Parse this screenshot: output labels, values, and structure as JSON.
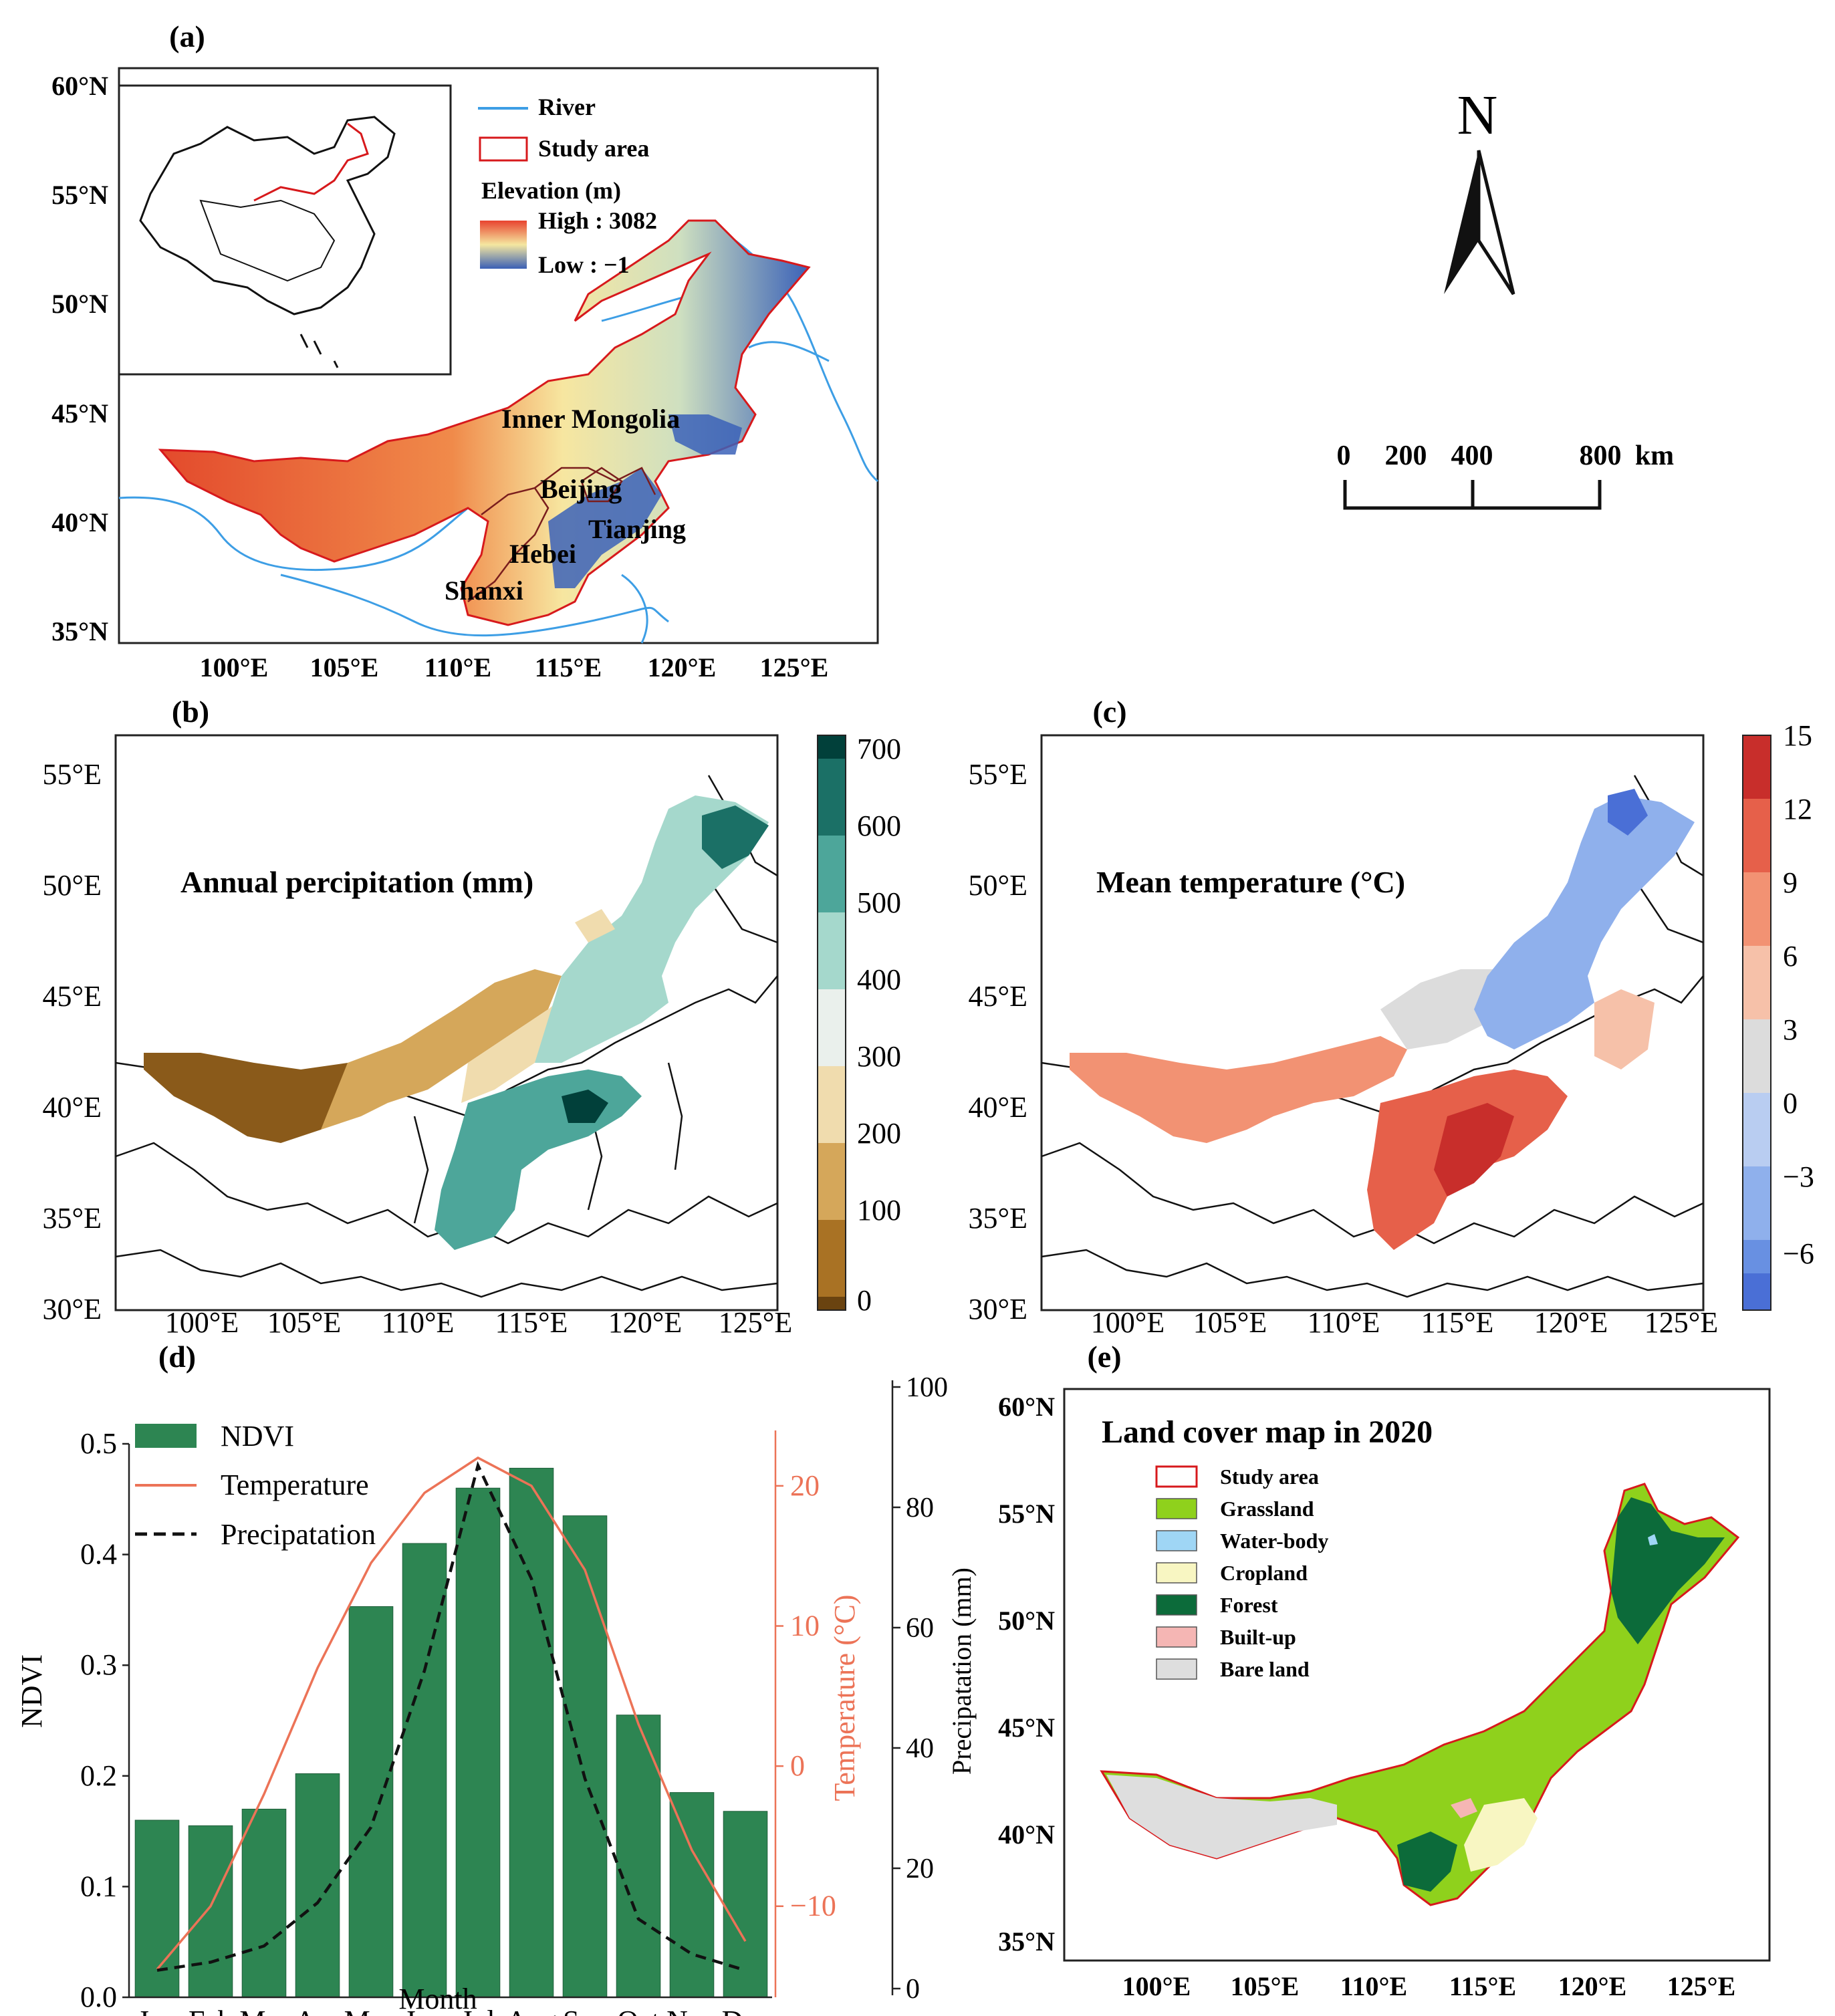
{
  "panels": {
    "a": {
      "label": "(a)",
      "lat_ticks": [
        "60°N",
        "55°N",
        "50°N",
        "45°N",
        "40°N",
        "35°N"
      ],
      "lon_ticks": [
        "100°E",
        "105°E",
        "110°E",
        "115°E",
        "120°E",
        "125°E"
      ],
      "legend": {
        "river": "River",
        "study_area": "Study area",
        "elevation_title": "Elevation (m)",
        "high": "High : 3082",
        "low": "Low : −1"
      },
      "places": [
        "Inner Mongolia",
        "Beijing",
        "Tianjing",
        "Hebei",
        "Shanxi"
      ],
      "north": "N",
      "scale": {
        "ticks": [
          "0",
          "200",
          "400",
          "800"
        ],
        "unit": "km"
      },
      "colors": {
        "high": "#e8432f",
        "mid": "#f5e7a0",
        "low": "#3a5fb5",
        "river": "#3d9ee5",
        "study_area": "#d7191c"
      }
    },
    "b": {
      "label": "(b)",
      "title": "Annual percipitation (mm)",
      "lat_ticks": [
        "55°E",
        "50°E",
        "45°E",
        "40°E",
        "35°E",
        "30°E"
      ],
      "lon_ticks": [
        "100°E",
        "105°E",
        "110°E",
        "115°E",
        "120°E",
        "125°E"
      ],
      "colorbar_ticks": [
        "700",
        "600",
        "500",
        "400",
        "300",
        "200",
        "100",
        "0"
      ],
      "colorbar_colors": [
        "#01403a",
        "#1b7066",
        "#4da69a",
        "#a5d8cc",
        "#eaf0ec",
        "#f0dcae",
        "#d5a75a",
        "#a97224",
        "#6a4310"
      ]
    },
    "c": {
      "label": "(c)",
      "title": "Mean temperature (°C)",
      "lat_ticks": [
        "55°E",
        "50°E",
        "45°E",
        "40°E",
        "35°E",
        "30°E"
      ],
      "lon_ticks": [
        "100°E",
        "105°E",
        "110°E",
        "115°E",
        "120°E",
        "125°E"
      ],
      "colorbar_ticks": [
        "15",
        "12",
        "9",
        "6",
        "3",
        "0",
        "−3",
        "−6"
      ],
      "colorbar_colors": [
        "#c82e2b",
        "#e6604a",
        "#f29273",
        "#f6c1a9",
        "#dcdcdc",
        "#b9cdf1",
        "#8fb0ec",
        "#6890e2",
        "#4a6fd6"
      ]
    },
    "d": {
      "label": "(d)",
      "legend": [
        "NDVI",
        "Temperature",
        "Precipatation"
      ],
      "colors": {
        "bar": "#2d8552",
        "temperature": "#ec7357",
        "precip": "#111111"
      }
    },
    "e": {
      "label": "(e)",
      "title": "Land cover map in 2020",
      "lat_ticks": [
        "60°N",
        "55°N",
        "50°N",
        "45°N",
        "40°N",
        "35°N"
      ],
      "lon_ticks": [
        "100°E",
        "105°E",
        "110°E",
        "115°E",
        "120°E",
        "125°E"
      ],
      "ylabel": "Precipatation (mm)",
      "legend": [
        {
          "label": "Study area",
          "color": "#ffffff",
          "border": "#d7191c"
        },
        {
          "label": "Grassland",
          "color": "#8fd11c"
        },
        {
          "label": "Water-body",
          "color": "#9fd6f5"
        },
        {
          "label": "Cropland",
          "color": "#f8f6c2"
        },
        {
          "label": "Forest",
          "color": "#0c6b3a"
        },
        {
          "label": "Built-up",
          "color": "#f5b6b4"
        },
        {
          "label": "Bare land",
          "color": "#dedede"
        }
      ]
    }
  },
  "chart_data": {
    "type": "bar",
    "categories": [
      "Jan",
      "Feb",
      "Mar",
      "Apr",
      "May",
      "Jun",
      "Jul",
      "Aug",
      "Sep",
      "Oct",
      "Nov",
      "Dec"
    ],
    "xlabel": "Month",
    "ylabel": "NDVI",
    "ylim": [
      0,
      0.5
    ],
    "y_ticks": [
      "0.0",
      "0.1",
      "0.2",
      "0.3",
      "0.4",
      "0.5"
    ],
    "series": [
      {
        "name": "NDVI",
        "axis": "left",
        "type": "bar",
        "values": [
          0.16,
          0.155,
          0.17,
          0.202,
          0.353,
          0.41,
          0.46,
          0.478,
          0.435,
          0.255,
          0.185,
          0.168
        ]
      },
      {
        "name": "Temperature",
        "axis": "right_inner",
        "type": "line",
        "unit": "°C",
        "ylim": [
          -16.5,
          23
        ],
        "ticks": [
          "20",
          "10",
          "0",
          "−10"
        ],
        "values": [
          -14.5,
          -10,
          -2,
          7,
          14.5,
          19.5,
          22,
          20,
          14,
          3,
          -6,
          -12.5
        ]
      },
      {
        "name": "Precipatation",
        "axis": "right_outer",
        "type": "line",
        "unit": "mm",
        "ylim": [
          -2.5,
          100
        ],
        "ticks": [
          "100",
          "80",
          "60",
          "40",
          "20",
          "0"
        ],
        "values": [
          2.5,
          4,
          7,
          15,
          29,
          58,
          96,
          75,
          38,
          12,
          5.5,
          2.5
        ]
      }
    ],
    "right_inner_label": "Temperature (°C)"
  }
}
